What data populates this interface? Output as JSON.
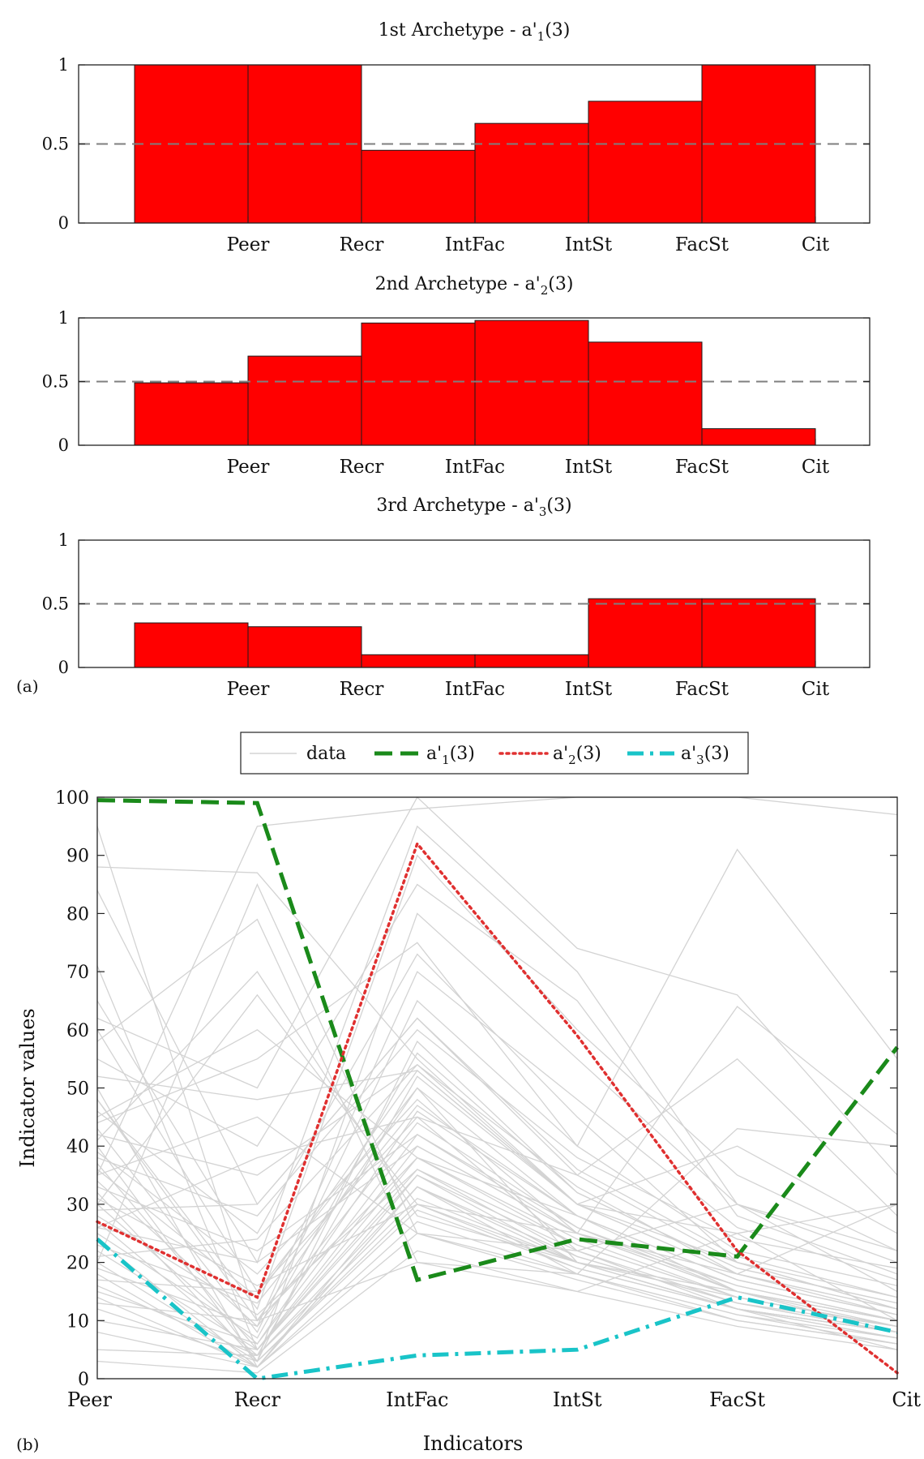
{
  "panel_labels": {
    "a": "(a)",
    "b": "(b)"
  },
  "colors": {
    "bar_fill": "#ff0000",
    "bar_stroke": "#1a1a1a",
    "threshold_line": "#7f7f7f",
    "data_lines": "#d3d3d3",
    "a1": "#1a8a1a",
    "a2": "#e03030",
    "a3": "#19c4c8"
  },
  "chart_data": [
    {
      "type": "bar",
      "title_main": "1st Archetype - a'",
      "title_sub": "1",
      "title_tail": "(3)",
      "categories": [
        "Peer",
        "Recr",
        "IntFac",
        "IntSt",
        "FacSt",
        "Cit"
      ],
      "values": [
        1.0,
        1.0,
        0.46,
        0.63,
        0.77,
        1.0
      ],
      "ylim": [
        0,
        1
      ],
      "yticks": [
        "0",
        "0.5",
        "1"
      ],
      "threshold": 0.5
    },
    {
      "type": "bar",
      "title_main": "2nd Archetype - a'",
      "title_sub": "2",
      "title_tail": "(3)",
      "categories": [
        "Peer",
        "Recr",
        "IntFac",
        "IntSt",
        "FacSt",
        "Cit"
      ],
      "values": [
        0.49,
        0.7,
        0.96,
        0.98,
        0.81,
        0.13
      ],
      "ylim": [
        0,
        1
      ],
      "yticks": [
        "0",
        "0.5",
        "1"
      ],
      "threshold": 0.5
    },
    {
      "type": "bar",
      "title_main": "3rd Archetype - a'",
      "title_sub": "3",
      "title_tail": "(3)",
      "categories": [
        "Peer",
        "Recr",
        "IntFac",
        "IntSt",
        "FacSt",
        "Cit"
      ],
      "values": [
        0.35,
        0.32,
        0.1,
        0.1,
        0.54,
        0.54
      ],
      "ylim": [
        0,
        1
      ],
      "yticks": [
        "0",
        "0.5",
        "1"
      ],
      "threshold": 0.5
    },
    {
      "type": "line",
      "categories": [
        "Peer",
        "Recr",
        "IntFac",
        "IntSt",
        "FacSt",
        "Cit"
      ],
      "xlabel": "Indicators",
      "ylabel": "Indicator values",
      "ylim": [
        0,
        100
      ],
      "yticks": [
        "0",
        "10",
        "20",
        "30",
        "40",
        "50",
        "60",
        "70",
        "80",
        "90",
        "100"
      ],
      "legend_position": "top-center",
      "series": [
        {
          "name": "data",
          "style": "solid",
          "color_key": "data_lines"
        },
        {
          "name": "a'",
          "sub": "1",
          "tail": "(3)",
          "style": "dashed",
          "color_key": "a1",
          "values": [
            99.5,
            99,
            17,
            24,
            21,
            57
          ]
        },
        {
          "name": "a'",
          "sub": "2",
          "tail": "(3)",
          "style": "dotted",
          "color_key": "a2",
          "values": [
            27,
            14,
            92,
            59,
            22,
            1
          ]
        },
        {
          "name": "a'",
          "sub": "3",
          "tail": "(3)",
          "style": "dashdot",
          "color_key": "a3",
          "values": [
            24,
            0,
            4,
            5,
            14,
            8
          ]
        }
      ],
      "background_lines": [
        [
          95,
          10,
          50,
          20,
          15,
          8
        ],
        [
          88,
          87,
          55,
          30,
          40,
          25
        ],
        [
          84,
          30,
          62,
          35,
          20,
          12
        ],
        [
          71,
          5,
          40,
          25,
          18,
          30
        ],
        [
          65,
          20,
          95,
          70,
          30,
          15
        ],
        [
          60,
          15,
          45,
          22,
          12,
          5
        ],
        [
          55,
          40,
          85,
          65,
          28,
          18
        ],
        [
          52,
          48,
          53,
          30,
          25,
          10
        ],
        [
          50,
          2,
          33,
          18,
          10,
          6
        ],
        [
          48,
          12,
          90,
          60,
          35,
          22
        ],
        [
          46,
          25,
          73,
          45,
          20,
          14
        ],
        [
          45,
          60,
          38,
          28,
          15,
          9
        ],
        [
          43,
          8,
          65,
          40,
          22,
          16
        ],
        [
          42,
          35,
          54,
          33,
          18,
          11
        ],
        [
          41,
          70,
          28,
          20,
          12,
          7
        ],
        [
          40,
          3,
          80,
          55,
          30,
          20
        ],
        [
          39,
          18,
          48,
          25,
          16,
          10
        ],
        [
          38,
          28,
          60,
          38,
          24,
          19
        ],
        [
          37,
          5,
          35,
          20,
          14,
          9
        ],
        [
          36,
          14,
          53,
          30,
          20,
          12
        ],
        [
          35,
          45,
          25,
          18,
          11,
          6
        ],
        [
          34,
          9,
          70,
          48,
          26,
          17
        ],
        [
          33,
          22,
          42,
          26,
          15,
          10
        ],
        [
          32,
          3,
          58,
          32,
          19,
          13
        ],
        [
          31,
          16,
          30,
          20,
          12,
          8
        ],
        [
          30,
          6,
          46,
          28,
          17,
          11
        ],
        [
          29,
          30,
          62,
          36,
          21,
          14
        ],
        [
          28,
          11,
          36,
          23,
          14,
          9
        ],
        [
          27,
          4,
          52,
          30,
          18,
          12
        ],
        [
          26,
          20,
          40,
          25,
          15,
          10
        ],
        [
          25,
          7,
          56,
          32,
          19,
          13
        ],
        [
          24,
          2,
          33,
          21,
          13,
          8
        ],
        [
          23,
          13,
          47,
          28,
          17,
          11
        ],
        [
          22,
          5,
          38,
          24,
          14,
          9
        ],
        [
          21,
          24,
          54,
          30,
          18,
          12
        ],
        [
          20,
          3,
          29,
          19,
          12,
          7
        ],
        [
          19,
          9,
          44,
          26,
          16,
          10
        ],
        [
          18,
          2,
          35,
          22,
          13,
          8
        ],
        [
          17,
          15,
          50,
          28,
          17,
          11
        ],
        [
          16,
          4,
          31,
          20,
          12,
          8
        ],
        [
          15,
          6,
          42,
          25,
          15,
          10
        ],
        [
          14,
          2,
          27,
          18,
          11,
          7
        ],
        [
          13,
          10,
          38,
          23,
          14,
          9
        ],
        [
          12,
          3,
          30,
          19,
          12,
          8
        ],
        [
          10,
          5,
          36,
          21,
          13,
          9
        ],
        [
          8,
          2,
          25,
          17,
          10,
          6
        ],
        [
          5,
          4,
          33,
          20,
          12,
          8
        ],
        [
          3,
          1,
          22,
          15,
          9,
          5
        ],
        [
          58,
          79,
          20,
          15,
          25,
          30
        ],
        [
          62,
          50,
          100,
          74,
          66,
          35
        ],
        [
          44,
          55,
          75,
          40,
          91,
          55
        ],
        [
          35,
          95,
          98,
          100,
          100,
          97
        ],
        [
          30,
          66,
          30,
          25,
          64,
          42
        ],
        [
          26,
          38,
          45,
          35,
          55,
          28
        ],
        [
          48,
          10,
          20,
          18,
          43,
          40
        ],
        [
          20,
          85,
          25,
          22,
          30,
          22
        ]
      ]
    }
  ]
}
